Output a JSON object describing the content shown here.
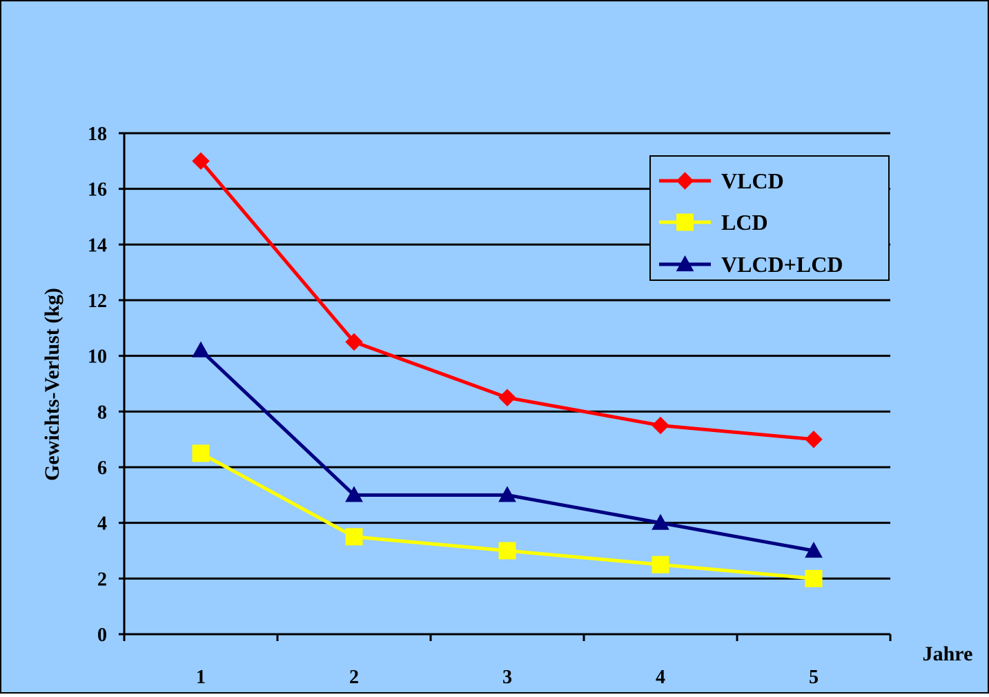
{
  "chart_data": {
    "type": "line",
    "title": "",
    "xlabel": "Jahre",
    "ylabel": "Gewichts-Verlust (kg)",
    "categories": [
      "1",
      "2",
      "3",
      "4",
      "5"
    ],
    "ylim": [
      0,
      18
    ],
    "yticks": [
      0,
      2,
      4,
      6,
      8,
      10,
      12,
      14,
      16,
      18
    ],
    "grid": true,
    "legend_position": "top-right",
    "series": [
      {
        "name": "VLCD",
        "values": [
          17.0,
          10.5,
          8.5,
          7.5,
          7.0
        ],
        "color": "#ff0000",
        "marker": "diamond"
      },
      {
        "name": "LCD",
        "values": [
          6.5,
          3.5,
          3.0,
          2.5,
          2.0
        ],
        "color": "#ffff00",
        "marker": "square"
      },
      {
        "name": "VLCD+LCD",
        "values": [
          10.2,
          5.0,
          5.0,
          4.0,
          3.0
        ],
        "color": "#000080",
        "marker": "triangle"
      }
    ],
    "colors": {
      "background": "#99ccff",
      "frame": "#000000",
      "gridline": "#000000"
    }
  }
}
